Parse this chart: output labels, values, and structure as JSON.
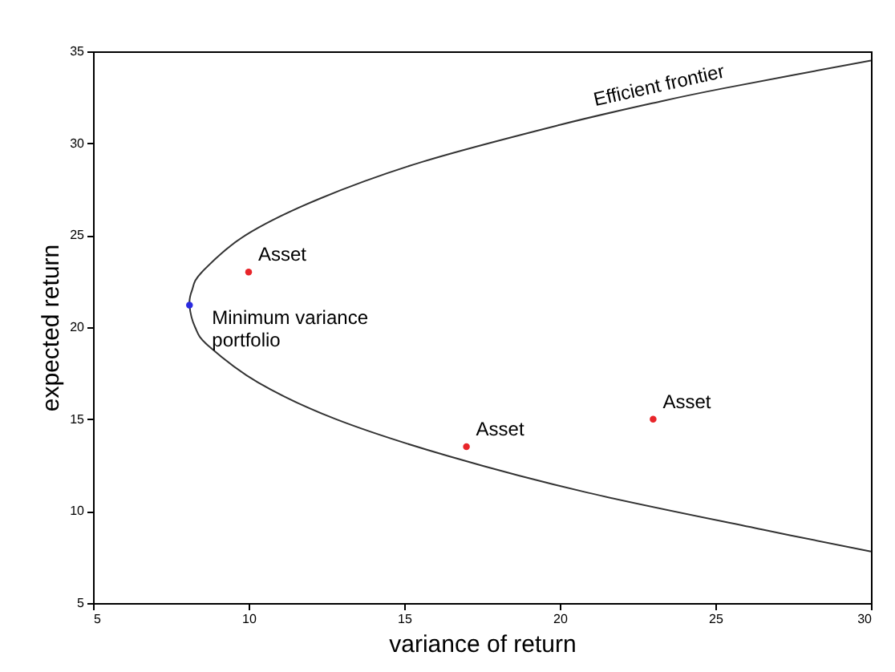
{
  "chart_data": {
    "type": "scatter",
    "xlabel": "variance of return",
    "ylabel": "expected return",
    "xlim": [
      5,
      30
    ],
    "ylim": [
      5,
      35
    ],
    "xticks": [
      5,
      10,
      15,
      20,
      25,
      30
    ],
    "yticks": [
      5,
      10,
      15,
      20,
      25,
      30,
      35
    ],
    "grid": false,
    "series": [
      {
        "type": "line",
        "color": "#333333",
        "x": [
          30,
          25.3,
          23.3,
          20,
          15.6,
          12.3,
          9.9,
          8.5,
          8.18,
          8.1,
          8.28,
          8.7,
          10.3,
          12.8,
          16.4,
          20.9,
          26.5,
          30
        ],
        "values": [
          34.5,
          33,
          32.3,
          31,
          29,
          27,
          25,
          23,
          22,
          21.2,
          20,
          19,
          17,
          15,
          13,
          11,
          9,
          7.8
        ]
      },
      {
        "marker": "circle",
        "color": "#e8252a",
        "x": [
          10,
          17,
          23
        ],
        "values": [
          23,
          13.5,
          15
        ]
      },
      {
        "marker": "circle",
        "color": "#2a2ae0",
        "x": [
          8.1
        ],
        "values": [
          21.2
        ]
      }
    ],
    "annotations": [
      {
        "text": "Efficient frontier",
        "x": 23.3,
        "y": 32.3
      },
      {
        "text": "Asset",
        "x": 10,
        "y": 23
      },
      {
        "text": "Asset",
        "x": 17,
        "y": 13.5
      },
      {
        "text": "Asset",
        "x": 23,
        "y": 15
      },
      {
        "text": "Minimum variance\nportfolio",
        "x": 8.1,
        "y": 21.2
      }
    ]
  }
}
